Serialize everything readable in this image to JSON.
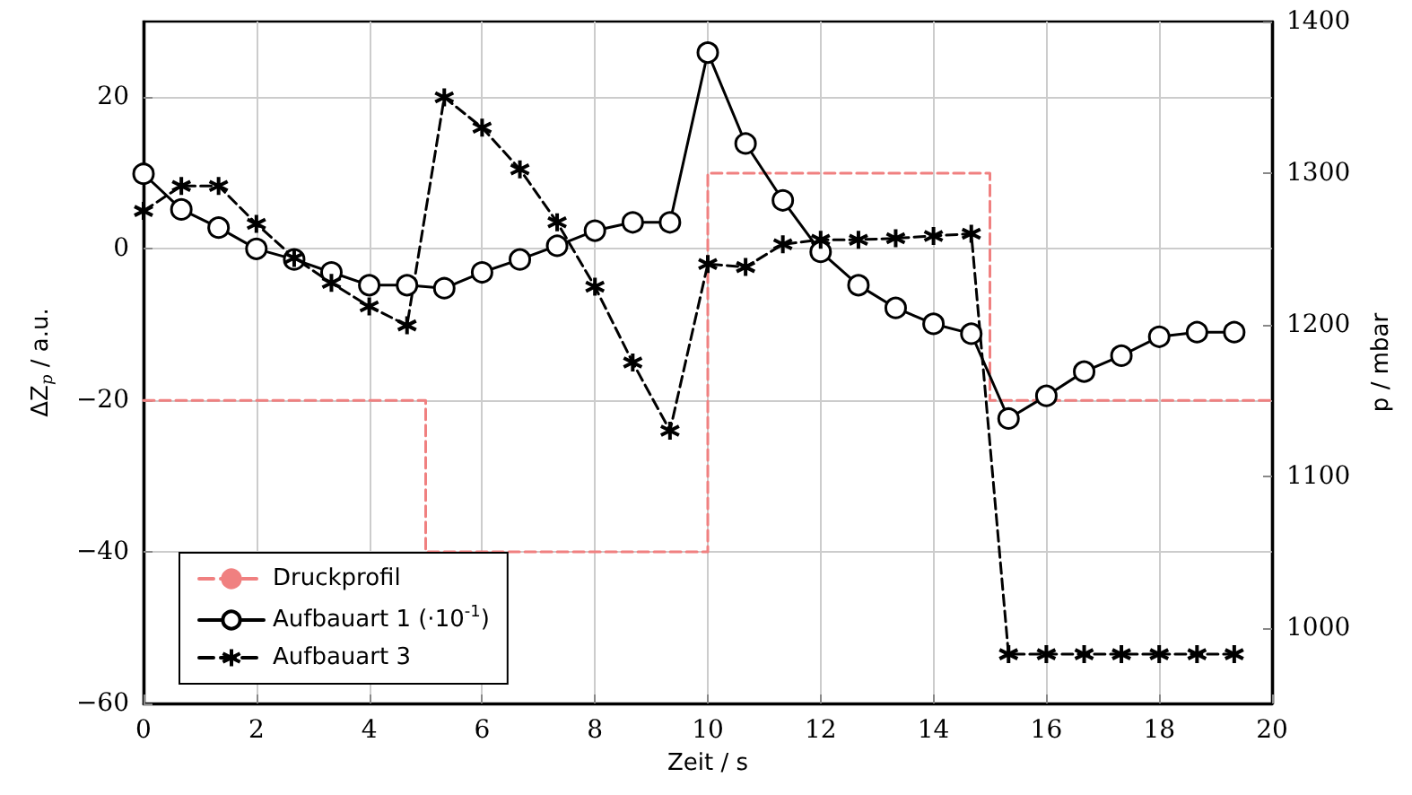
{
  "chart_data": {
    "type": "line",
    "xlabel": "Zeit / s",
    "ylabel": "ΔZ$_{p}$ / a.u.",
    "y2label": "p / mbar",
    "xlim": [
      0,
      20
    ],
    "xticks": [
      0,
      2,
      4,
      6,
      8,
      10,
      12,
      14,
      16,
      18,
      20
    ],
    "ylim": [
      -60,
      30
    ],
    "yticks": [
      -60,
      -40,
      -20,
      0,
      20
    ],
    "y2lim": [
      950,
      1400
    ],
    "y2ticks": [
      1000,
      1100,
      1200,
      1300,
      1400
    ],
    "grid": true,
    "legend": "bottom left",
    "series": [
      {
        "name": "Druckprofil",
        "axis": "y2",
        "color": "#f08080",
        "line_style": "dashed",
        "marker": "none",
        "x": [
          0,
          5,
          5,
          10,
          10,
          15,
          15,
          20
        ],
        "values": [
          1150,
          1150,
          1050,
          1050,
          1300,
          1300,
          1150,
          1150
        ]
      },
      {
        "name": "Aufbauart 1 (·10$^{-1}$)",
        "color": "#000000",
        "line_style": "solid",
        "marker": "circle",
        "x": [
          0,
          0.67,
          1.33,
          2,
          2.67,
          3.33,
          4,
          4.67,
          5.33,
          6,
          6.67,
          7.33,
          8,
          8.67,
          9.33,
          10,
          10.67,
          11.33,
          12,
          12.67,
          13.33,
          14,
          14.67,
          15.33,
          16,
          16.67,
          17.33,
          18,
          18.67,
          19.33
        ],
        "values": [
          9.9,
          5.2,
          2.8,
          0,
          -1.4,
          -3.1,
          -4.8,
          -4.8,
          -5.2,
          -3.1,
          -1.4,
          0.4,
          2.4,
          3.5,
          3.5,
          25.9,
          13.9,
          6.4,
          -0.4,
          -4.8,
          -7.8,
          -9.9,
          -11.2,
          -22.4,
          -19.4,
          -16.2,
          -14.1,
          -11.6,
          -11,
          -11
        ]
      },
      {
        "name": "Aufbauart 3",
        "color": "#000000",
        "line_style": "dashed",
        "marker": "cross",
        "x": [
          0,
          0.67,
          1.33,
          2,
          2.67,
          3.33,
          4,
          4.67,
          5.33,
          6,
          6.67,
          7.33,
          8,
          8.67,
          9.33,
          10,
          10.67,
          11.33,
          12,
          12.67,
          13.33,
          14,
          14.67,
          15.33,
          16,
          16.67,
          17.33,
          18,
          18.67,
          19.33
        ],
        "values": [
          5,
          8.3,
          8.3,
          3.3,
          -1.2,
          -4.5,
          -7.6,
          -10.1,
          20,
          16,
          10.5,
          3.5,
          -5,
          -15,
          -24,
          -2,
          -2.4,
          0.6,
          1.2,
          1.2,
          1.4,
          1.7,
          2,
          -53.5,
          -53.5,
          -53.5,
          -53.5,
          -53.5,
          -53.5,
          -53.5
        ]
      }
    ]
  }
}
